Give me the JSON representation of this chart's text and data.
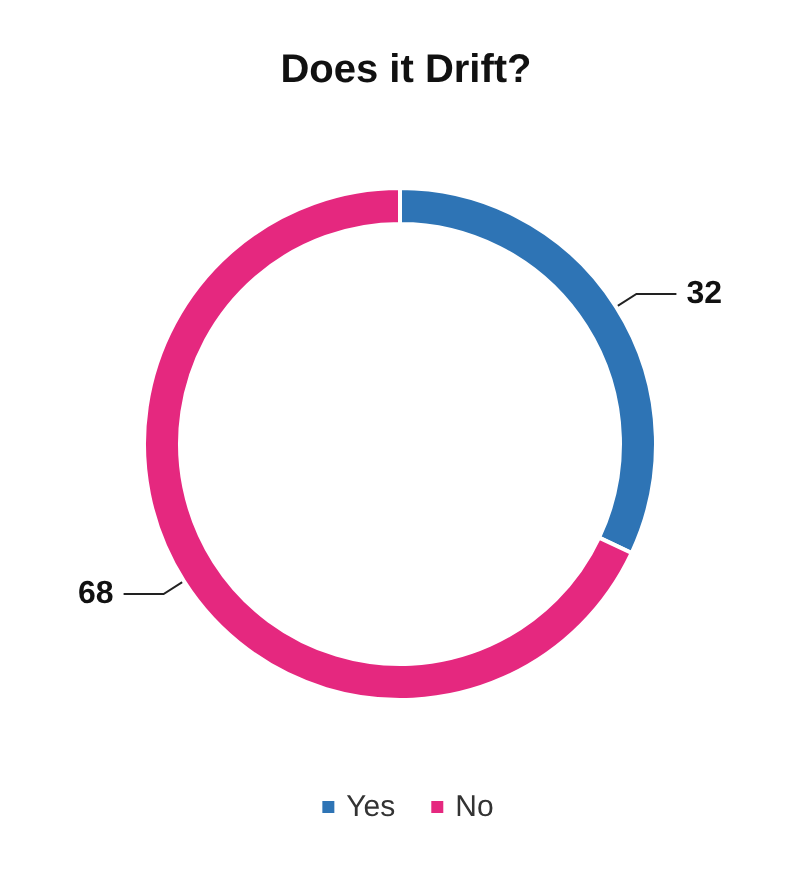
{
  "chart_data": {
    "type": "donut",
    "title": "Does it Drift?",
    "categories": [
      "Yes",
      "No"
    ],
    "values": [
      32,
      68
    ],
    "colors": [
      "#2e74b5",
      "#e5287f"
    ],
    "data_labels": true,
    "legend": "bottom"
  }
}
